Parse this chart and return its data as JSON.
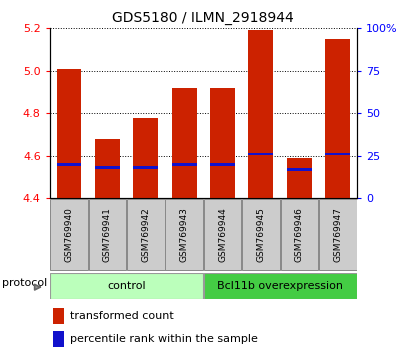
{
  "title": "GDS5180 / ILMN_2918944",
  "samples": [
    "GSM769940",
    "GSM769941",
    "GSM769942",
    "GSM769943",
    "GSM769944",
    "GSM769945",
    "GSM769946",
    "GSM769947"
  ],
  "transformed_counts": [
    5.01,
    4.68,
    4.78,
    4.92,
    4.92,
    5.19,
    4.59,
    5.15
  ],
  "percentile_ranks": [
    20,
    18,
    18,
    20,
    20,
    26,
    17,
    26
  ],
  "ylim": [
    4.4,
    5.2
  ],
  "yticks": [
    4.4,
    4.6,
    4.8,
    5.0,
    5.2
  ],
  "right_yticks": [
    0,
    25,
    50,
    75,
    100
  ],
  "bar_color": "#cc2200",
  "percentile_color": "#1111cc",
  "control_color": "#bbffbb",
  "overexpression_color": "#44cc44",
  "label_bg_color": "#cccccc",
  "bar_width": 0.65,
  "legend_items": [
    "transformed count",
    "percentile rank within the sample"
  ]
}
